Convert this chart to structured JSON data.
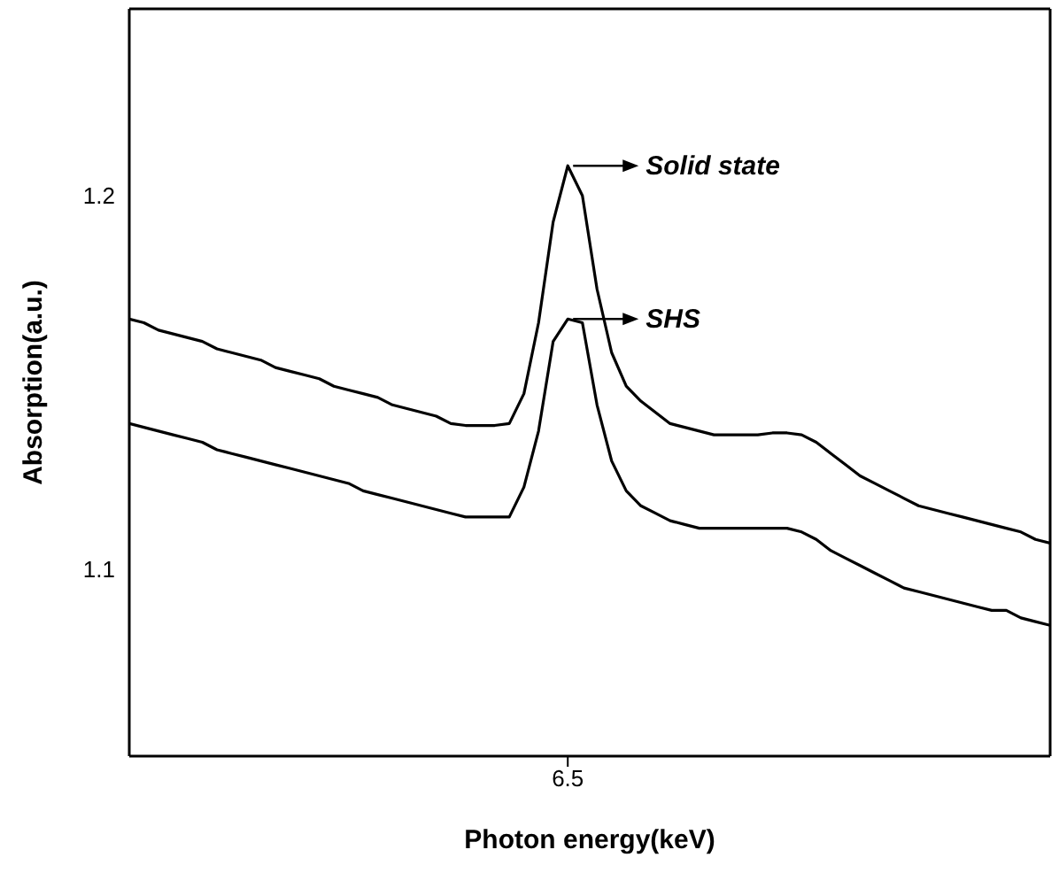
{
  "chart_data": {
    "type": "line",
    "xlabel": "Photon energy(keV)",
    "ylabel": "Absorption(a.u.)",
    "categories": [
      null,
      null,
      null,
      null,
      null,
      null,
      null,
      null,
      null,
      null,
      null,
      null,
      null,
      null,
      null,
      null,
      null,
      null,
      null,
      null,
      null,
      null,
      null,
      null,
      null,
      null,
      null,
      null,
      null,
      null,
      "6.5",
      null,
      null,
      null,
      null,
      null,
      null,
      null,
      null,
      null,
      null,
      null,
      null,
      null,
      null,
      null,
      null,
      null,
      null,
      null,
      null,
      null,
      null,
      null,
      null,
      null,
      null,
      null,
      null,
      null,
      null,
      null,
      null,
      null
    ],
    "ylim": [
      1.05,
      1.25
    ],
    "yticks": [
      1.1,
      1.2
    ],
    "annotations": [
      {
        "text": "Solid state",
        "x": "6.5",
        "y": 1.208
      },
      {
        "text": "SHS",
        "x": "6.5",
        "y": 1.167
      }
    ],
    "series": [
      {
        "color": "#000000",
        "values": [
          1.167,
          1.166,
          1.164,
          1.163,
          1.162,
          1.161,
          1.159,
          1.158,
          1.157,
          1.156,
          1.154,
          1.153,
          1.152,
          1.151,
          1.149,
          1.148,
          1.147,
          1.146,
          1.144,
          1.143,
          1.142,
          1.141,
          1.139,
          1.1385,
          1.1385,
          1.1385,
          1.139,
          1.147,
          1.166,
          1.193,
          1.208,
          1.2,
          1.175,
          1.158,
          1.149,
          1.145,
          1.142,
          1.139,
          1.138,
          1.137,
          1.136,
          1.136,
          1.136,
          1.136,
          1.1365,
          1.1365,
          1.136,
          1.134,
          1.131,
          1.128,
          1.125,
          1.123,
          1.121,
          1.119,
          1.117,
          1.116,
          1.115,
          1.114,
          1.113,
          1.112,
          1.111,
          1.11,
          1.108,
          1.107
        ]
      },
      {
        "color": "#000000",
        "values": [
          1.139,
          1.138,
          1.137,
          1.136,
          1.135,
          1.134,
          1.132,
          1.131,
          1.13,
          1.129,
          1.128,
          1.127,
          1.126,
          1.125,
          1.124,
          1.123,
          1.121,
          1.12,
          1.119,
          1.118,
          1.117,
          1.116,
          1.115,
          1.114,
          1.114,
          1.114,
          1.114,
          1.122,
          1.137,
          1.161,
          1.167,
          1.166,
          1.144,
          1.129,
          1.121,
          1.117,
          1.115,
          1.113,
          1.112,
          1.111,
          1.111,
          1.111,
          1.111,
          1.111,
          1.111,
          1.111,
          1.11,
          1.108,
          1.105,
          1.103,
          1.101,
          1.099,
          1.097,
          1.095,
          1.094,
          1.093,
          1.092,
          1.091,
          1.09,
          1.089,
          1.089,
          1.087,
          1.086,
          1.085
        ]
      }
    ]
  }
}
